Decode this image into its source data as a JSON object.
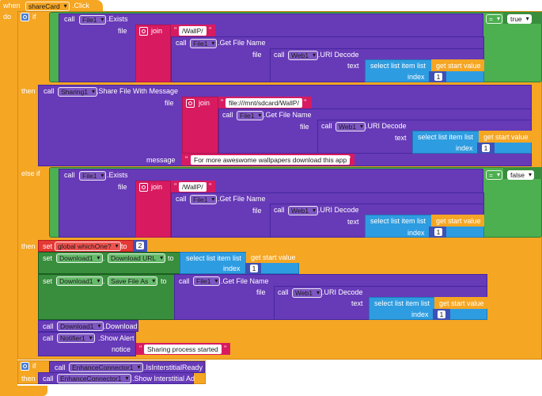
{
  "event": {
    "when": "when",
    "component": "shareCard",
    "event": ".Click",
    "do": "do"
  },
  "labels": {
    "if": "if",
    "then": "then",
    "else_if": "else if",
    "call": "call",
    "set": "set",
    "to": "to",
    "file": "file",
    "text": "text",
    "index": "index",
    "message": "message",
    "notice": "notice",
    "join": "join",
    "select_list_item": "select list item  list",
    "get_start_value": "get start value",
    "eq": "=",
    "true": "true",
    "false": "false",
    "dot": "."
  },
  "methods": {
    "exists": ".Exists",
    "get_file_name": ".Get File Name",
    "uri_decode": ".URI Decode",
    "share_file": ".Share File With Message",
    "download": ".Download",
    "show_alert": ".Show Alert",
    "is_ready": ".IsInterstitialReady",
    "show_ad": ".Show Interstitial Ad"
  },
  "components": {
    "file1": "File1",
    "web1": "Web1",
    "sharing1": "Sharing1",
    "download1": "Download1",
    "notifier1": "Notifier1",
    "enhance": "EnhanceConnector1",
    "global_which": "global whichOne?"
  },
  "properties": {
    "download_url": "Download URL",
    "save_file_as": "Save File As"
  },
  "strings": {
    "wallp_slash": "/WallP/",
    "sdcard_path": "file:///mnt/sdcard/WallP/",
    "share_message": "For more aweswome wallpapers download this app",
    "sharing_started": "Sharing process started"
  },
  "numbers": {
    "one": "1",
    "two": "2"
  },
  "colors": {
    "event_orange": "#F5A623",
    "control_orange": "#F5A623",
    "component_purple": "#673AB7",
    "text_pink": "#D81B60",
    "logic_green": "#4CAF50",
    "list_blue": "#2E9CE0",
    "math_indigo": "#3F51B5",
    "variable_red": "#E53935"
  }
}
